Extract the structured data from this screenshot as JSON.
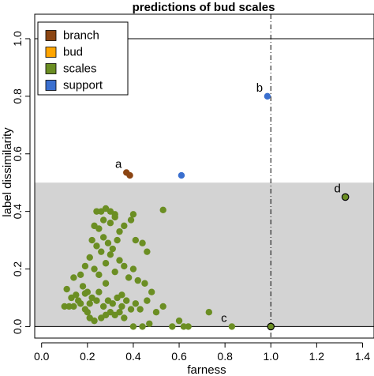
{
  "chart_data": {
    "type": "scatter",
    "title": "predictions of bud scales",
    "xlabel": "farness",
    "ylabel": "label dissimilarity",
    "xlim": [
      -0.03,
      1.45
    ],
    "ylim": [
      -0.04,
      1.085
    ],
    "x_ticks": [
      "0.0",
      "0.2",
      "0.4",
      "0.6",
      "0.8",
      "1.0",
      "1.2",
      "1.4"
    ],
    "x_tick_values": [
      0,
      0.2,
      0.4,
      0.6,
      0.8,
      1.0,
      1.2,
      1.4
    ],
    "y_ticks": [
      "0.0",
      "0.2",
      "0.4",
      "0.6",
      "0.8",
      "1.0"
    ],
    "y_tick_values": [
      0,
      0.2,
      0.4,
      0.6,
      0.8,
      1.0
    ],
    "shaded_region": {
      "y0": 0,
      "y1": 0.5,
      "color": "#d3d3d3"
    },
    "hlines": [
      0,
      1.0
    ],
    "vline": {
      "x": 1.0,
      "style": "dotdash"
    },
    "grid": false,
    "legend_position": "top-left",
    "series": [
      {
        "name": "branch",
        "color": "#8b4513",
        "points": [
          [
            0.37,
            0.535
          ],
          [
            0.385,
            0.525
          ]
        ]
      },
      {
        "name": "bud",
        "color": "#ffa500",
        "points": []
      },
      {
        "name": "scales",
        "color": "#6b8e23",
        "points": [
          [
            0.1,
            0.07
          ],
          [
            0.12,
            0.07
          ],
          [
            0.14,
            0.07
          ],
          [
            0.17,
            0.08
          ],
          [
            0.19,
            0.06
          ],
          [
            0.2,
            0.05
          ],
          [
            0.21,
            0.03
          ],
          [
            0.23,
            0.02
          ],
          [
            0.26,
            0.03
          ],
          [
            0.28,
            0.04
          ],
          [
            0.3,
            0.05
          ],
          [
            0.32,
            0.04
          ],
          [
            0.34,
            0.05
          ],
          [
            0.36,
            0.03
          ],
          [
            0.4,
            0.0
          ],
          [
            0.44,
            0.0
          ],
          [
            0.47,
            0.01
          ],
          [
            0.5,
            0.05
          ],
          [
            0.53,
            0.07
          ],
          [
            0.57,
            0.0
          ],
          [
            0.6,
            0.02
          ],
          [
            0.64,
            0.0
          ],
          [
            0.73,
            0.05
          ],
          [
            0.83,
            0.0
          ],
          [
            0.11,
            0.13
          ],
          [
            0.13,
            0.1
          ],
          [
            0.15,
            0.11
          ],
          [
            0.16,
            0.09
          ],
          [
            0.18,
            0.14
          ],
          [
            0.2,
            0.12
          ],
          [
            0.22,
            0.1
          ],
          [
            0.24,
            0.09
          ],
          [
            0.25,
            0.12
          ],
          [
            0.27,
            0.07
          ],
          [
            0.29,
            0.09
          ],
          [
            0.31,
            0.08
          ],
          [
            0.33,
            0.1
          ],
          [
            0.35,
            0.07
          ],
          [
            0.37,
            0.09
          ],
          [
            0.39,
            0.06
          ],
          [
            0.41,
            0.08
          ],
          [
            0.43,
            0.06
          ],
          [
            0.46,
            0.09
          ],
          [
            0.14,
            0.17
          ],
          [
            0.17,
            0.18
          ],
          [
            0.19,
            0.21
          ],
          [
            0.21,
            0.24
          ],
          [
            0.23,
            0.2
          ],
          [
            0.25,
            0.18
          ],
          [
            0.26,
            0.26
          ],
          [
            0.28,
            0.22
          ],
          [
            0.3,
            0.25
          ],
          [
            0.32,
            0.19
          ],
          [
            0.34,
            0.23
          ],
          [
            0.36,
            0.21
          ],
          [
            0.38,
            0.17
          ],
          [
            0.4,
            0.2
          ],
          [
            0.42,
            0.16
          ],
          [
            0.45,
            0.15
          ],
          [
            0.48,
            0.12
          ],
          [
            0.22,
            0.3
          ],
          [
            0.24,
            0.28
          ],
          [
            0.27,
            0.31
          ],
          [
            0.29,
            0.29
          ],
          [
            0.31,
            0.27
          ],
          [
            0.33,
            0.3
          ],
          [
            0.23,
            0.35
          ],
          [
            0.25,
            0.34
          ],
          [
            0.27,
            0.37
          ],
          [
            0.3,
            0.36
          ],
          [
            0.32,
            0.38
          ],
          [
            0.34,
            0.33
          ],
          [
            0.36,
            0.35
          ],
          [
            0.39,
            0.37
          ],
          [
            0.41,
            0.3
          ],
          [
            0.44,
            0.29
          ],
          [
            0.46,
            0.26
          ],
          [
            0.24,
            0.4
          ],
          [
            0.26,
            0.4
          ],
          [
            0.28,
            0.41
          ],
          [
            0.3,
            0.4
          ],
          [
            0.32,
            0.39
          ],
          [
            0.4,
            0.39
          ],
          [
            0.53,
            0.405
          ],
          [
            0.19,
            0.115
          ],
          [
            0.21,
            0.08
          ],
          [
            0.35,
            0.11
          ],
          [
            0.28,
            0.15
          ],
          [
            0.62,
            0.0
          ],
          [
            1.0,
            0.0
          ],
          [
            1.325,
            0.45
          ]
        ]
      },
      {
        "name": "support",
        "color": "#3a6fcf",
        "points": [
          [
            0.61,
            0.525
          ],
          [
            0.985,
            0.8
          ]
        ]
      }
    ],
    "highlighted_points": [
      [
        1.0,
        0.0
      ],
      [
        1.325,
        0.45
      ]
    ],
    "annotations": [
      {
        "text": "a",
        "x": 0.37,
        "y": 0.535
      },
      {
        "text": "b",
        "x": 0.985,
        "y": 0.8
      },
      {
        "text": "c",
        "x": 0.83,
        "y": 0.0
      },
      {
        "text": "d",
        "x": 1.325,
        "y": 0.45
      }
    ]
  }
}
